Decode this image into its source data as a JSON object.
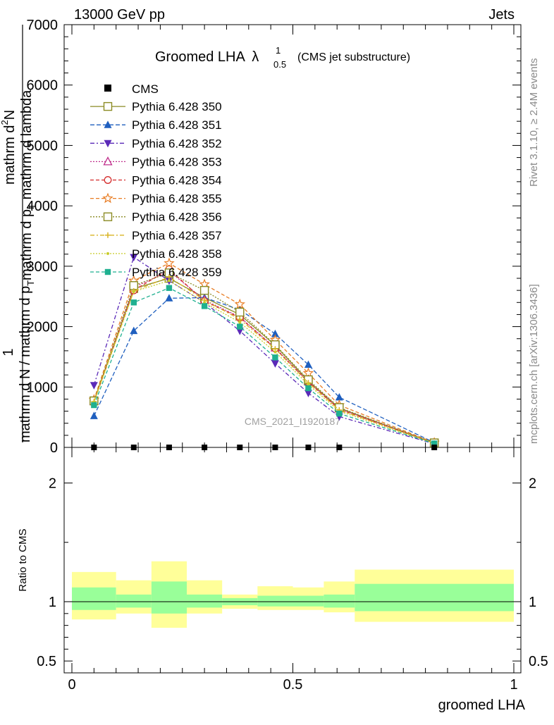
{
  "header": {
    "left": "13000 GeV pp",
    "right": "Jets"
  },
  "side": {
    "rivet": "Rivet 3.1.10, ≥ 2.4M events",
    "mcplots": "mcplots.cern.ch [arXiv:1306.3436]"
  },
  "watermark": "CMS_2021_I1920187",
  "title": {
    "main": "Groomed LHA",
    "symbol": "λ",
    "sup": "1",
    "sub": "0.5",
    "suffix": "(CMS jet substructure)"
  },
  "ylabel": {
    "one": "1",
    "denominator": "mathrm d N / mathrm d p",
    "denominator_sub": "T",
    "numerator_line1": "mathrm d",
    "numerator_sup": "2",
    "numerator_rest": "N",
    "numerator_line2": "mathrm d p",
    "numerator_line2_sub": "T",
    "numerator_line2_rest": " mathrm d lambda"
  },
  "chart_data": {
    "type": "line",
    "xlabel": "groomed LHA",
    "xlim": [
      0,
      1
    ],
    "ylim_main": [
      0,
      7000
    ],
    "yticks_main": [
      0,
      1000,
      2000,
      3000,
      4000,
      5000,
      6000,
      7000
    ],
    "ytick_labels_main": [
      "0",
      "1000",
      "2000",
      "3000",
      "4000",
      "5000",
      "6000",
      "7000"
    ],
    "ratio_label": "Ratio to CMS",
    "ylim_ratio": [
      0.4,
      2.3
    ],
    "yticks_ratio": [
      0.5,
      1,
      2
    ],
    "ytick_labels_ratio": [
      "0.5",
      "1",
      "2"
    ],
    "xticks": [
      0,
      0.5,
      1
    ],
    "xtick_labels": [
      "0",
      "0.5",
      "1"
    ],
    "bin_edges": [
      0,
      0.1,
      0.18,
      0.26,
      0.34,
      0.42,
      0.5,
      0.57,
      0.64,
      1.0
    ],
    "x": [
      0.05,
      0.14,
      0.22,
      0.3,
      0.38,
      0.46,
      0.535,
      0.605,
      0.82
    ],
    "cms": [
      0,
      0,
      0,
      0,
      0,
      0,
      0,
      0,
      0
    ],
    "ratio_bands": [
      {
        "x0": 0.0,
        "x1": 0.1,
        "inner": [
          0.93,
          1.12
        ],
        "outer": [
          0.85,
          1.25
        ]
      },
      {
        "x0": 0.1,
        "x1": 0.18,
        "inner": [
          0.95,
          1.06
        ],
        "outer": [
          0.9,
          1.18
        ]
      },
      {
        "x0": 0.18,
        "x1": 0.26,
        "inner": [
          0.9,
          1.17
        ],
        "outer": [
          0.78,
          1.34
        ]
      },
      {
        "x0": 0.26,
        "x1": 0.34,
        "inner": [
          0.95,
          1.06
        ],
        "outer": [
          0.9,
          1.18
        ]
      },
      {
        "x0": 0.34,
        "x1": 0.42,
        "inner": [
          0.97,
          1.03
        ],
        "outer": [
          0.94,
          1.06
        ]
      },
      {
        "x0": 0.42,
        "x1": 0.5,
        "inner": [
          0.96,
          1.05
        ],
        "outer": [
          0.93,
          1.13
        ]
      },
      {
        "x0": 0.5,
        "x1": 0.57,
        "inner": [
          0.96,
          1.05
        ],
        "outer": [
          0.93,
          1.12
        ]
      },
      {
        "x0": 0.57,
        "x1": 0.64,
        "inner": [
          0.95,
          1.06
        ],
        "outer": [
          0.91,
          1.17
        ]
      },
      {
        "x0": 0.64,
        "x1": 1.0,
        "inner": [
          0.92,
          1.15
        ],
        "outer": [
          0.83,
          1.27
        ]
      }
    ],
    "series": [
      {
        "name": "Pythia 6.428 350",
        "color": "#8b8b24",
        "marker": "square-open",
        "dash": "none",
        "values": [
          770,
          2630,
          2800,
          2480,
          2200,
          1690,
          1100,
          650,
          75
        ]
      },
      {
        "name": "Pythia 6.428 351",
        "color": "#1f5fbf",
        "marker": "triangle-up",
        "dash": "6,3",
        "values": [
          520,
          1930,
          2470,
          2480,
          2280,
          1880,
          1370,
          830,
          80
        ]
      },
      {
        "name": "Pythia 6.428 352",
        "color": "#5b2ab8",
        "marker": "triangle-down",
        "dash": "6,3,2,3",
        "values": [
          1030,
          3150,
          2760,
          2400,
          1930,
          1390,
          900,
          510,
          60
        ]
      },
      {
        "name": "Pythia 6.428 353",
        "color": "#c0308c",
        "marker": "triangle-open",
        "dash": "2,2",
        "values": [
          760,
          2650,
          2920,
          2440,
          2160,
          1650,
          1090,
          640,
          72
        ]
      },
      {
        "name": "Pythia 6.428 354",
        "color": "#d42a2a",
        "marker": "circle-open",
        "dash": "5,3",
        "values": [
          760,
          2600,
          2950,
          2420,
          2150,
          1640,
          1080,
          630,
          70
        ]
      },
      {
        "name": "Pythia 6.428 355",
        "color": "#e87d24",
        "marker": "star-open",
        "dash": "5,3",
        "values": [
          790,
          2760,
          3050,
          2700,
          2370,
          1780,
          1230,
          700,
          78
        ]
      },
      {
        "name": "Pythia 6.428 356",
        "color": "#8b8b24",
        "marker": "square-open",
        "dash": "2,2",
        "values": [
          770,
          2680,
          2890,
          2600,
          2240,
          1700,
          1120,
          660,
          74
        ]
      },
      {
        "name": "Pythia 6.428 357",
        "color": "#d9b424",
        "marker": "plus",
        "dash": "6,3,2,3",
        "values": [
          760,
          2590,
          2820,
          2440,
          2120,
          1630,
          1070,
          620,
          70
        ]
      },
      {
        "name": "Pythia 6.428 358",
        "color": "#c8cc2a",
        "marker": "dot",
        "dash": "2,2",
        "values": [
          750,
          2580,
          2760,
          2400,
          2070,
          1580,
          1040,
          600,
          68
        ]
      },
      {
        "name": "Pythia 6.428 359",
        "color": "#1fb090",
        "marker": "square-fill",
        "dash": "5,3",
        "values": [
          700,
          2400,
          2640,
          2340,
          2000,
          1490,
          980,
          560,
          65
        ]
      }
    ],
    "legend_cms": "CMS",
    "legend_position": "top-left"
  }
}
